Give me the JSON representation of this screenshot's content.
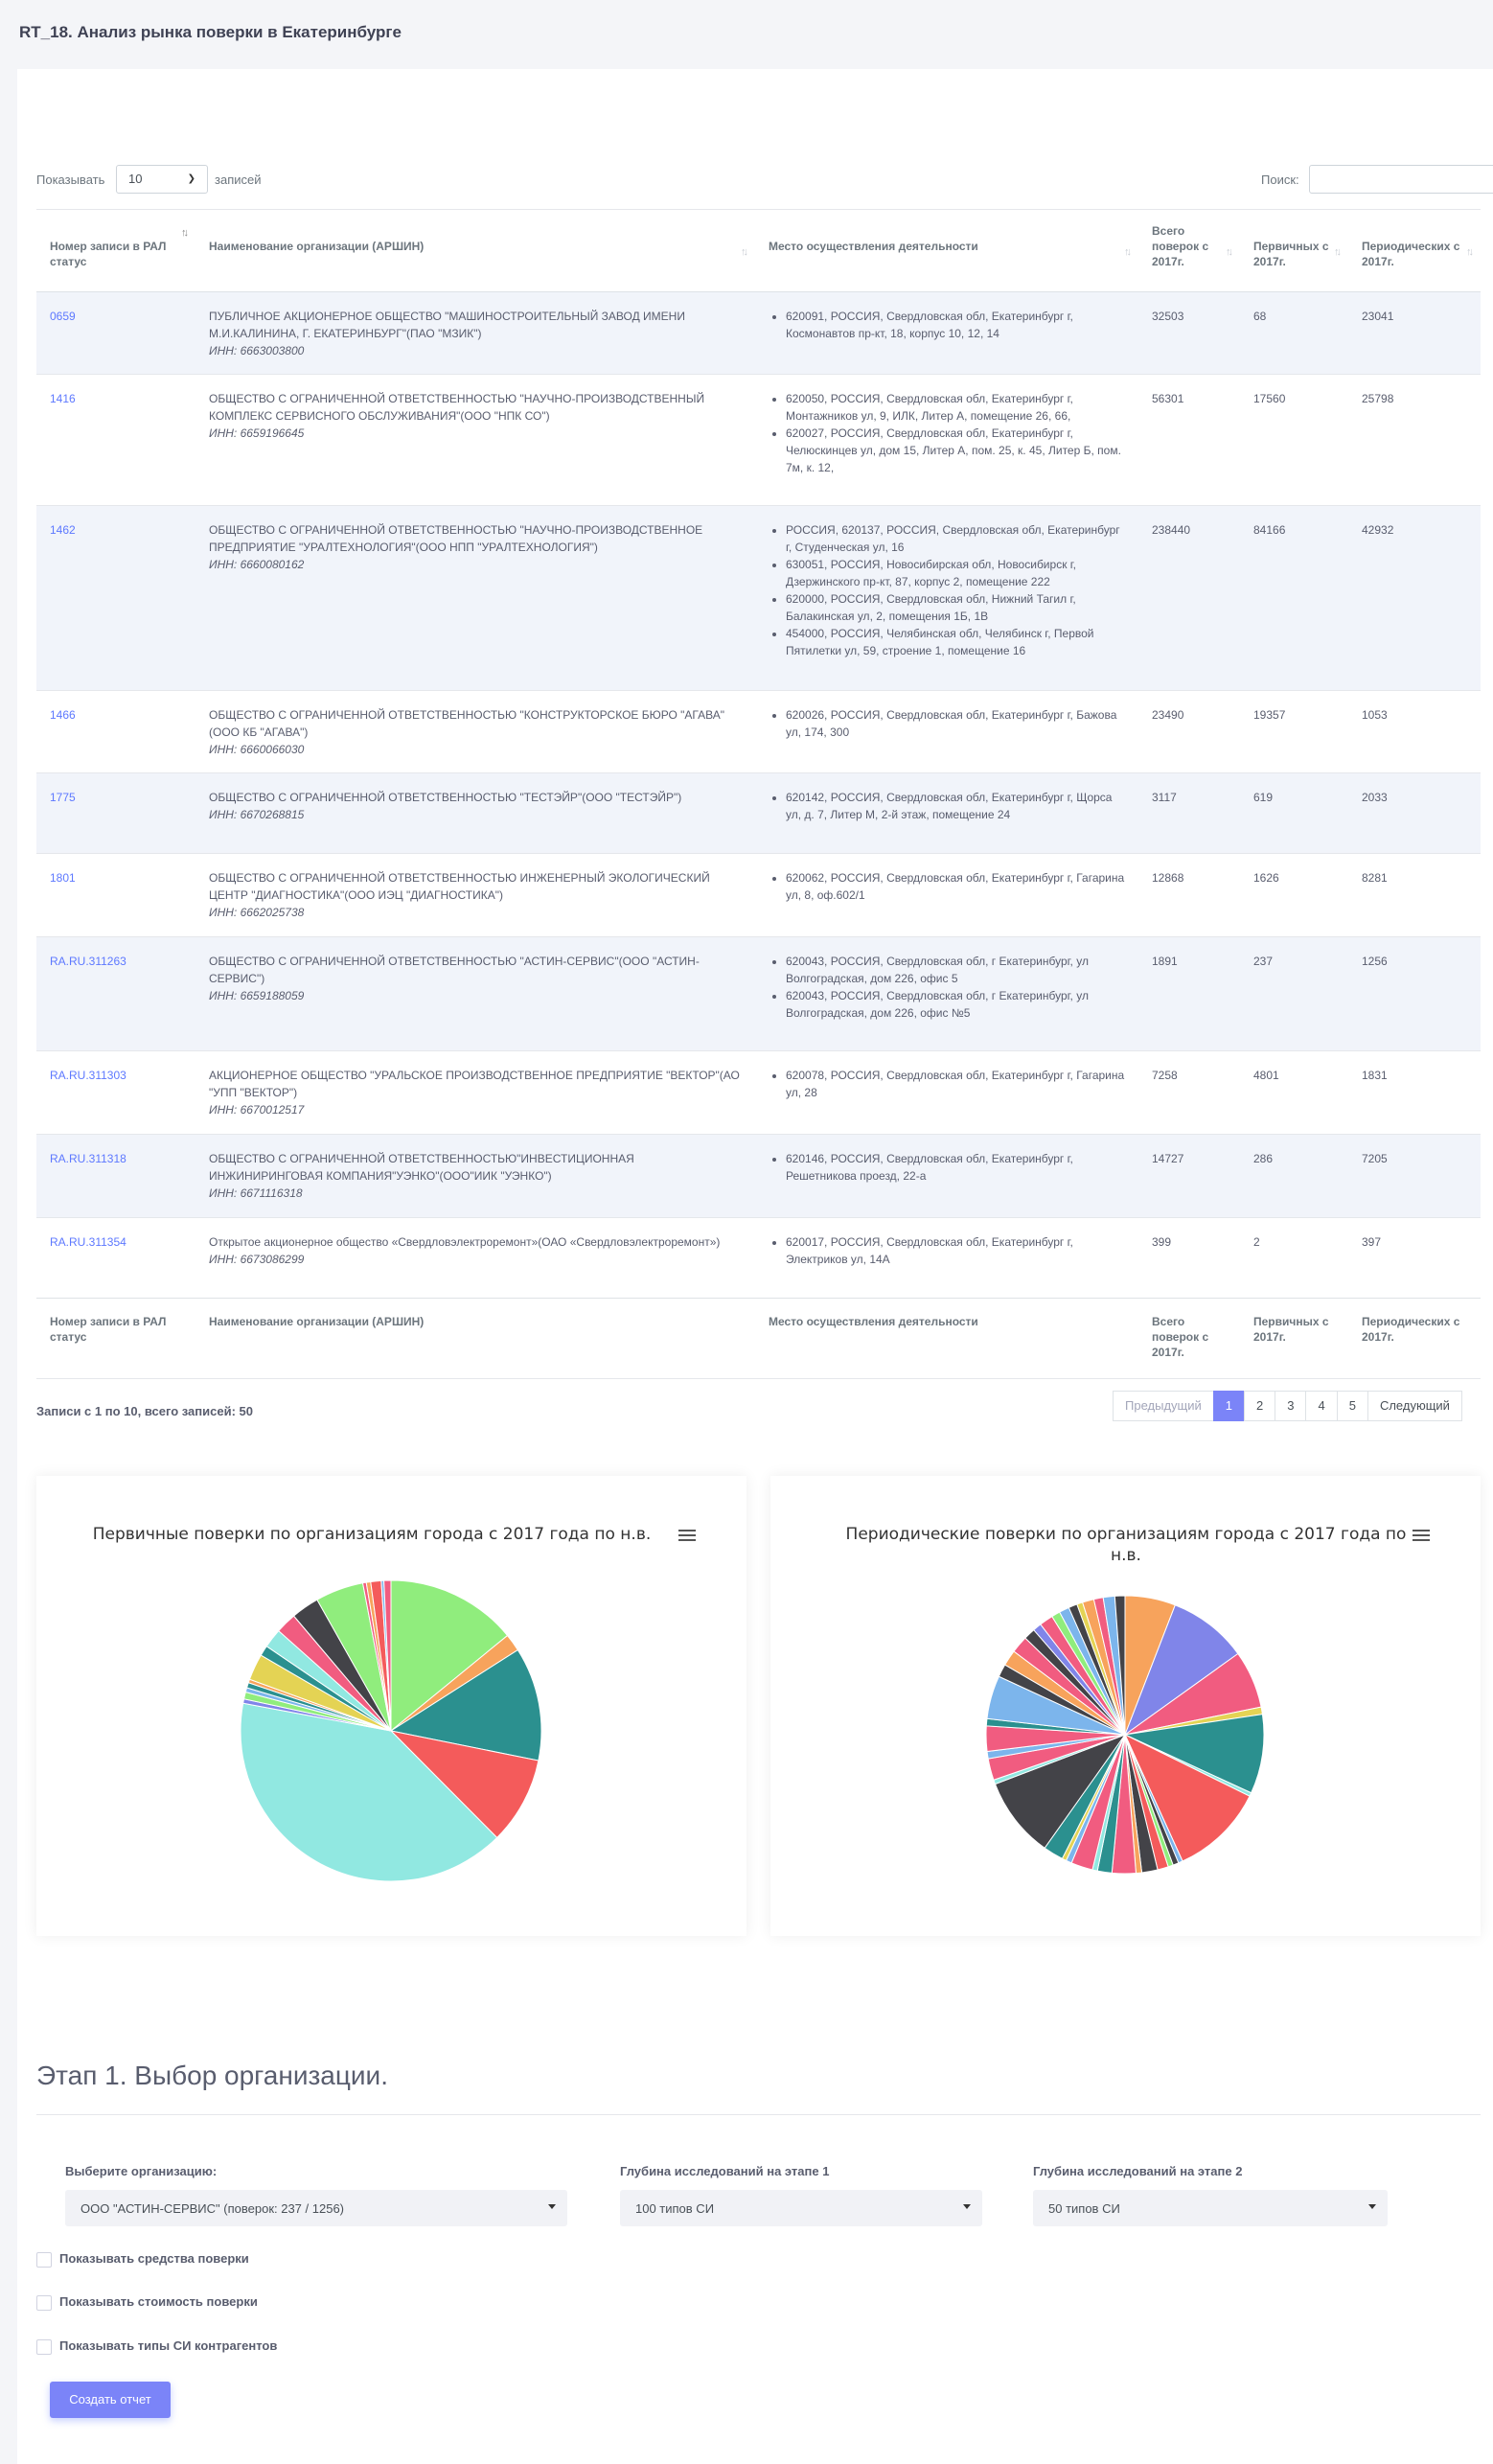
{
  "page": {
    "title": "RT_18. Анализ рынка поверки в Екатеринбурге"
  },
  "table_controls": {
    "show_label": "Показывать",
    "page_length": "10",
    "entries_label": "записей",
    "search_label": "Поиск:",
    "search_value": ""
  },
  "columns": {
    "reg": "Номер записи в РАЛ статус",
    "name": "Наименование организации (АРШИН)",
    "place": "Место осуществления деятельности",
    "total": "Всего поверок с 2017г.",
    "primary": "Первичных с 2017г.",
    "periodic": "Периодических с 2017г."
  },
  "rows": [
    {
      "reg": "0659",
      "name": "ПУБЛИЧНОЕ АКЦИОНЕРНОЕ ОБЩЕСТВО \"МАШИНОСТРОИТЕЛЬНЫЙ ЗАВОД ИМЕНИ М.И.КАЛИНИНА, Г. ЕКАТЕРИНБУРГ\"(ПАО \"МЗИК\")",
      "inn": "ИНН: 6663003800",
      "addresses": [
        "620091, РОССИЯ, Свердловская обл, Екатеринбург г, Космонавтов пр-кт, 18, корпус 10, 12, 14"
      ],
      "total": "32503",
      "primary": "68",
      "periodic": "23041"
    },
    {
      "reg": "1416",
      "name": "ОБЩЕСТВО С ОГРАНИЧЕННОЙ ОТВЕТСТВЕННОСТЬЮ \"НАУЧНО-ПРОИЗВОДСТВЕННЫЙ КОМПЛЕКС СЕРВИСНОГО ОБСЛУЖИВАНИЯ\"(ООО \"НПК СО\")",
      "inn": "ИНН: 6659196645",
      "addresses": [
        "620050, РОССИЯ, Свердловская обл, Екатеринбург г, Монтажников ул, 9, ИЛК, Литер А, помещение 26, 66,",
        "620027, РОССИЯ, Свердловская обл, Екатеринбург г, Челюскинцев ул, дом 15, Литер А, пом. 25, к. 45, Литер Б, пом. 7м, к. 12,"
      ],
      "total": "56301",
      "primary": "17560",
      "periodic": "25798"
    },
    {
      "reg": "1462",
      "name": "ОБЩЕСТВО С ОГРАНИЧЕННОЙ ОТВЕТСТВЕННОСТЬЮ \"НАУЧНО-ПРОИЗВОДСТВЕННОЕ ПРЕДПРИЯТИЕ \"УРАЛТЕХНОЛОГИЯ\"(ООО НПП \"УРАЛТЕХНОЛОГИЯ\")",
      "inn": "ИНН: 6660080162",
      "addresses": [
        "РОССИЯ, 620137, РОССИЯ, Свердловская обл, Екатеринбург г, Студенческая ул, 16",
        "630051, РОССИЯ, Новосибирская обл, Новосибирск г, Дзержинского пр-кт, 87, корпус 2, помещение 222",
        "620000, РОССИЯ, Свердловская обл, Нижний Тагил г, Балакинская ул, 2, помещения 1Б, 1В",
        "454000, РОССИЯ, Челябинская обл, Челябинск г, Первой Пятилетки ул, 59, строение 1, помещение 16"
      ],
      "total": "238440",
      "primary": "84166",
      "periodic": "42932"
    },
    {
      "reg": "1466",
      "name": "ОБЩЕСТВО С ОГРАНИЧЕННОЙ ОТВЕТСТВЕННОСТЬЮ \"КОНСТРУКТОРСКОЕ БЮРО \"АГАВА\"(ООО КБ \"АГАВА\")",
      "inn": "ИНН: 6660066030",
      "addresses": [
        "620026, РОССИЯ, Свердловская обл, Екатеринбург г, Бажова ул, 174, 300"
      ],
      "total": "23490",
      "primary": "19357",
      "periodic": "1053"
    },
    {
      "reg": "1775",
      "name": "ОБЩЕСТВО С ОГРАНИЧЕННОЙ ОТВЕТСТВЕННОСТЬЮ \"ТЕСТЭЙР\"(ООО \"ТЕСТЭЙР\")",
      "inn": "ИНН: 6670268815",
      "addresses": [
        "620142, РОССИЯ, Свердловская обл, Екатеринбург г, Щорса ул, д. 7, Литер М, 2-й этаж, помещение 24"
      ],
      "total": "3117",
      "primary": "619",
      "periodic": "2033"
    },
    {
      "reg": "1801",
      "name": "ОБЩЕСТВО С ОГРАНИЧЕННОЙ ОТВЕТСТВЕННОСТЬЮ ИНЖЕНЕРНЫЙ ЭКОЛОГИЧЕСКИЙ ЦЕНТР \"ДИАГНОСТИКА\"(ООО ИЭЦ \"ДИАГНОСТИКА\")",
      "inn": "ИНН: 6662025738",
      "addresses": [
        "620062, РОССИЯ, Свердловская обл, Екатеринбург г, Гагарина ул, 8, оф.602/1"
      ],
      "total": "12868",
      "primary": "1626",
      "periodic": "8281"
    },
    {
      "reg": "RA.RU.311263",
      "name": "ОБЩЕСТВО С ОГРАНИЧЕННОЙ ОТВЕТСТВЕННОСТЬЮ \"АСТИН-СЕРВИС\"(ООО \"АСТИН-СЕРВИС\")",
      "inn": "ИНН: 6659188059",
      "addresses": [
        "620043, РОССИЯ, Свердловская обл, г Екатеринбург, ул Волгоградская, дом 226, офис 5",
        "620043, РОССИЯ, Свердловская обл, г Екатеринбург, ул Волгоградская, дом 226, офис №5"
      ],
      "total": "1891",
      "primary": "237",
      "periodic": "1256"
    },
    {
      "reg": "RA.RU.311303",
      "name": "АКЦИОНЕРНОЕ ОБЩЕСТВО \"УРАЛЬСКОЕ ПРОИЗВОДСТВЕННОЕ ПРЕДПРИЯТИЕ \"ВЕКТОР\"(АО \"УПП \"ВЕКТОР\")",
      "inn": "ИНН: 6670012517",
      "addresses": [
        "620078, РОССИЯ, Свердловская обл, Екатеринбург г, Гагарина ул, 28"
      ],
      "total": "7258",
      "primary": "4801",
      "periodic": "1831"
    },
    {
      "reg": "RA.RU.311318",
      "name": "ОБЩЕСТВО С ОГРАНИЧЕННОЙ ОТВЕТСТВЕННОСТЬЮ\"ИНВЕСТИЦИОННАЯ ИНЖИНИРИНГОВАЯ КОМПАНИЯ\"УЭНКО\"(ООО\"ИИК \"УЭНКО\")",
      "inn": "ИНН: 6671116318",
      "addresses": [
        "620146, РОССИЯ, Свердловская обл, Екатеринбург г, Решетникова проезд, 22-а"
      ],
      "total": "14727",
      "primary": "286",
      "periodic": "7205"
    },
    {
      "reg": "RA.RU.311354",
      "name": "Открытое акционерное общество «Свердловэлектроремонт»(ОАО «Свердловэлектроремонт»)",
      "inn": "ИНН: 6673086299",
      "addresses": [
        "620017, РОССИЯ, Свердловская обл, Екатеринбург г, Электриков ул, 14А"
      ],
      "total": "399",
      "primary": "2",
      "periodic": "397"
    }
  ],
  "table_info": "Записи с 1 по 10, всего записей: 50",
  "pagination": {
    "prev": "Предыдущий",
    "pages": [
      "1",
      "2",
      "3",
      "4",
      "5"
    ],
    "active": "1",
    "next": "Следующий"
  },
  "chart_data": [
    {
      "type": "pie",
      "title": "Первичные поверки по организациям города с 2017 года по н.в.",
      "values": [
        15.0,
        2.0,
        13.0,
        10.0,
        43.0,
        0.5,
        0.8,
        0.5,
        0.6,
        0.4,
        3.0,
        1.2,
        2.2,
        2.4,
        3.2,
        5.5,
        0.4,
        0.5,
        1.2,
        0.3,
        0.8
      ],
      "colors": [
        "#90ed7d",
        "#f7a35c",
        "#2b908f",
        "#f45b5b",
        "#91e8e1",
        "#8085e9",
        "#90ed7d",
        "#7cb5ec",
        "#2b908f",
        "#f7a35c",
        "#e4d354",
        "#2b908f",
        "#91e8e1",
        "#f15c80",
        "#434348",
        "#90ed7d",
        "#f15c80",
        "#f7a35c",
        "#f45b5b",
        "#7cb5ec",
        "#f15c80"
      ]
    },
    {
      "type": "pie",
      "title": "Периодические поверки по организациям города с 2017 года по н.в.",
      "values": [
        7.0,
        11.0,
        8.0,
        1.0,
        11.0,
        0.5,
        13.0,
        0.6,
        0.8,
        0.7,
        1.5,
        2.2,
        0.8,
        3.3,
        2.0,
        0.7,
        3.0,
        0.8,
        0.6,
        2.8,
        11.2,
        0.6,
        3.0,
        1.0,
        3.5,
        1.0,
        6.0,
        1.8,
        2.2,
        2.4,
        1.6,
        1.2,
        1.9,
        1.2,
        1.4,
        1.2,
        0.8,
        1.6,
        1.3,
        1.6,
        1.4
      ],
      "colors": [
        "#f7a35c",
        "#8085e9",
        "#f15c80",
        "#e4d354",
        "#2b908f",
        "#91e8e1",
        "#f45b5b",
        "#7cb5ec",
        "#434348",
        "#90ed7d",
        "#f45b5b",
        "#434348",
        "#f7a35c",
        "#f15c80",
        "#2b908f",
        "#91e8e1",
        "#f15c80",
        "#7cb5ec",
        "#e4d354",
        "#2b908f",
        "#434348",
        "#91e8e1",
        "#f15c80",
        "#7cb5ec",
        "#f15c80",
        "#2b908f",
        "#7cb5ec",
        "#434348",
        "#f7a35c",
        "#f15c80",
        "#434348",
        "#8085e9",
        "#f15c80",
        "#90ed7d",
        "#7cb5ec",
        "#434348",
        "#e4d354",
        "#f7a35c",
        "#f15c80",
        "#7cb5ec",
        "#434348"
      ]
    }
  ],
  "stage": {
    "title": "Этап 1. Выбор организации.",
    "org_label": "Выберите организацию:",
    "org_value": "ООО \"АСТИН-СЕРВИС\" (поверок: 237 / 1256)",
    "depth1_label": "Глубина исследований на этапе 1",
    "depth1_value": "100 типов СИ",
    "depth2_label": "Глубина исследований на этапе 2",
    "depth2_value": "50 типов СИ",
    "check_tools": "Показывать средства поверки",
    "check_cost": "Показывать стоимость поверки",
    "check_types": "Показывать типы СИ контрагентов",
    "report_button": "Создать отчет"
  }
}
